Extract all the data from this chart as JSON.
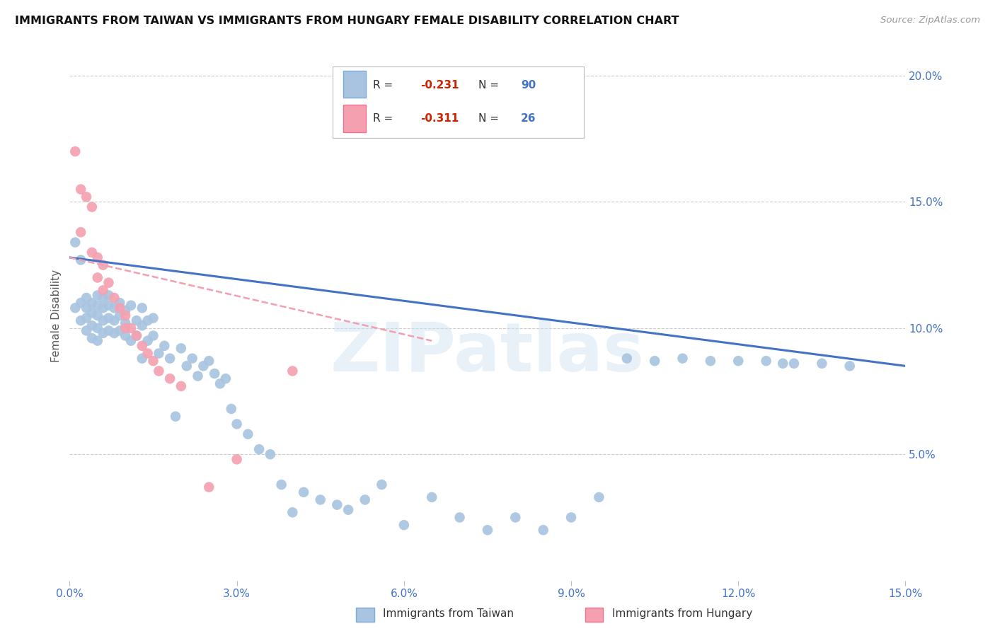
{
  "title": "IMMIGRANTS FROM TAIWAN VS IMMIGRANTS FROM HUNGARY FEMALE DISABILITY CORRELATION CHART",
  "source": "Source: ZipAtlas.com",
  "ylabel_label": "Female Disability",
  "x_min": 0.0,
  "x_max": 0.15,
  "y_min": 0.0,
  "y_max": 0.21,
  "y_ticks": [
    0.05,
    0.1,
    0.15,
    0.2
  ],
  "x_ticks": [
    0.0,
    0.03,
    0.06,
    0.09,
    0.12,
    0.15
  ],
  "taiwan_R": -0.231,
  "taiwan_N": 90,
  "hungary_R": -0.311,
  "hungary_N": 26,
  "taiwan_color": "#a8c4e0",
  "hungary_color": "#f4a0b0",
  "taiwan_line_color": "#4472c4",
  "hungary_line_color": "#f0a0b0",
  "watermark": "ZIPatlas",
  "taiwan_line_x0": 0.0,
  "taiwan_line_y0": 0.128,
  "taiwan_line_x1": 0.15,
  "taiwan_line_y1": 0.085,
  "hungary_line_x0": 0.0,
  "hungary_line_y0": 0.128,
  "hungary_line_x1": 0.065,
  "hungary_line_y1": 0.095,
  "taiwan_scatter_x": [
    0.001,
    0.001,
    0.002,
    0.002,
    0.002,
    0.003,
    0.003,
    0.003,
    0.003,
    0.004,
    0.004,
    0.004,
    0.004,
    0.005,
    0.005,
    0.005,
    0.005,
    0.005,
    0.006,
    0.006,
    0.006,
    0.006,
    0.007,
    0.007,
    0.007,
    0.007,
    0.008,
    0.008,
    0.008,
    0.009,
    0.009,
    0.009,
    0.01,
    0.01,
    0.01,
    0.011,
    0.011,
    0.012,
    0.012,
    0.013,
    0.013,
    0.013,
    0.014,
    0.014,
    0.015,
    0.015,
    0.016,
    0.017,
    0.018,
    0.019,
    0.02,
    0.021,
    0.022,
    0.023,
    0.024,
    0.025,
    0.026,
    0.027,
    0.028,
    0.029,
    0.03,
    0.032,
    0.034,
    0.036,
    0.038,
    0.04,
    0.042,
    0.045,
    0.048,
    0.05,
    0.053,
    0.056,
    0.06,
    0.065,
    0.07,
    0.075,
    0.08,
    0.085,
    0.09,
    0.095,
    0.1,
    0.105,
    0.11,
    0.115,
    0.12,
    0.125,
    0.128,
    0.13,
    0.135,
    0.14
  ],
  "taiwan_scatter_y": [
    0.134,
    0.108,
    0.127,
    0.11,
    0.103,
    0.112,
    0.108,
    0.104,
    0.099,
    0.11,
    0.106,
    0.101,
    0.096,
    0.113,
    0.109,
    0.105,
    0.1,
    0.095,
    0.112,
    0.108,
    0.103,
    0.098,
    0.113,
    0.109,
    0.104,
    0.099,
    0.108,
    0.103,
    0.098,
    0.11,
    0.105,
    0.099,
    0.107,
    0.102,
    0.097,
    0.109,
    0.095,
    0.103,
    0.097,
    0.108,
    0.101,
    0.088,
    0.103,
    0.095,
    0.104,
    0.097,
    0.09,
    0.093,
    0.088,
    0.065,
    0.092,
    0.085,
    0.088,
    0.081,
    0.085,
    0.087,
    0.082,
    0.078,
    0.08,
    0.068,
    0.062,
    0.058,
    0.052,
    0.05,
    0.038,
    0.027,
    0.035,
    0.032,
    0.03,
    0.028,
    0.032,
    0.038,
    0.022,
    0.033,
    0.025,
    0.02,
    0.025,
    0.02,
    0.025,
    0.033,
    0.088,
    0.087,
    0.088,
    0.087,
    0.087,
    0.087,
    0.086,
    0.086,
    0.086,
    0.085
  ],
  "hungary_scatter_x": [
    0.001,
    0.002,
    0.002,
    0.003,
    0.004,
    0.004,
    0.005,
    0.005,
    0.006,
    0.006,
    0.007,
    0.008,
    0.009,
    0.01,
    0.01,
    0.011,
    0.012,
    0.013,
    0.014,
    0.015,
    0.016,
    0.018,
    0.02,
    0.025,
    0.03,
    0.04
  ],
  "hungary_scatter_y": [
    0.17,
    0.155,
    0.138,
    0.152,
    0.148,
    0.13,
    0.128,
    0.12,
    0.125,
    0.115,
    0.118,
    0.112,
    0.108,
    0.105,
    0.1,
    0.1,
    0.097,
    0.093,
    0.09,
    0.087,
    0.083,
    0.08,
    0.077,
    0.037,
    0.048,
    0.083
  ]
}
